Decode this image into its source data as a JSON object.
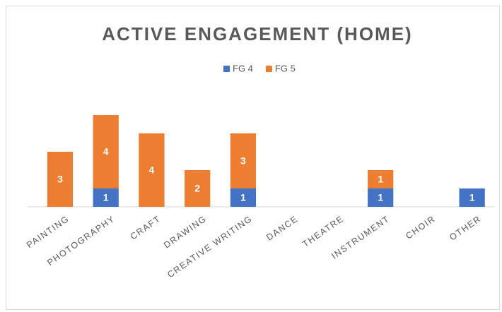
{
  "chart_data": {
    "type": "stacked_bar",
    "title": "ACTIVE ENGAGEMENT (HOME)",
    "categories": [
      "PAINTING",
      "PHOTOGRAPHY",
      "CRAFT",
      "DRAWING",
      "CREATIVE WRITING",
      "DANCE",
      "THEATRE",
      "INSTRUMENT",
      "CHOIR",
      "OTHER"
    ],
    "series": [
      {
        "name": "FG 4",
        "color": "#4472c4",
        "values": [
          0,
          1,
          0,
          0,
          1,
          0,
          0,
          1,
          0,
          1
        ]
      },
      {
        "name": "FG 5",
        "color": "#ed7d31",
        "values": [
          3,
          4,
          4,
          2,
          3,
          0,
          0,
          1,
          0,
          0
        ]
      }
    ],
    "ylim": [
      0,
      6
    ],
    "legend": "top"
  }
}
